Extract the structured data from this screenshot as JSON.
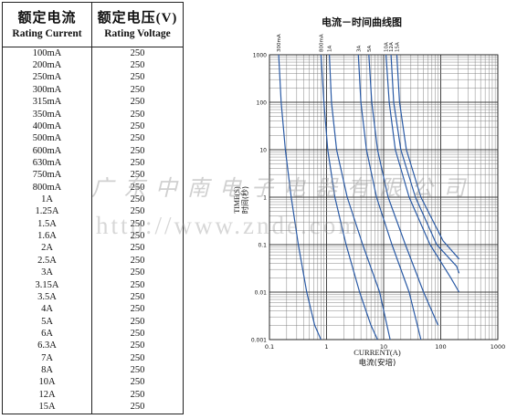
{
  "table": {
    "header_current_cn": "额定电流",
    "header_current_en": "Rating Current",
    "header_voltage_cn": "额定电压(V)",
    "header_voltage_en": "Rating Voltage",
    "rows": [
      [
        "100mA",
        "250"
      ],
      [
        "200mA",
        "250"
      ],
      [
        "250mA",
        "250"
      ],
      [
        "300mA",
        "250"
      ],
      [
        "315mA",
        "250"
      ],
      [
        "350mA",
        "250"
      ],
      [
        "400mA",
        "250"
      ],
      [
        "500mA",
        "250"
      ],
      [
        "600mA",
        "250"
      ],
      [
        "630mA",
        "250"
      ],
      [
        "750mA",
        "250"
      ],
      [
        "800mA",
        "250"
      ],
      [
        "1A",
        "250"
      ],
      [
        "1.25A",
        "250"
      ],
      [
        "1.5A",
        "250"
      ],
      [
        "1.6A",
        "250"
      ],
      [
        "2A",
        "250"
      ],
      [
        "2.5A",
        "250"
      ],
      [
        "3A",
        "250"
      ],
      [
        "3.15A",
        "250"
      ],
      [
        "3.5A",
        "250"
      ],
      [
        "4A",
        "250"
      ],
      [
        "5A",
        "250"
      ],
      [
        "6A",
        "250"
      ],
      [
        "6.3A",
        "250"
      ],
      [
        "7A",
        "250"
      ],
      [
        "8A",
        "250"
      ],
      [
        "10A",
        "250"
      ],
      [
        "12A",
        "250"
      ],
      [
        "15A",
        "250"
      ]
    ]
  },
  "watermark": {
    "company": "广东中南电子电器有限公司",
    "url": "http://www.znde.com"
  },
  "chart_data": {
    "type": "line",
    "title": "电流－时间曲线图",
    "xlabel": "CURRENT(A)",
    "xlabel_cn": "电流(安培)",
    "ylabel": "TIME(S)",
    "ylabel_cn": "时间(秒)",
    "x_scale": "log",
    "y_scale": "log",
    "xlim": [
      0.1,
      1000
    ],
    "ylim": [
      0.001,
      1000
    ],
    "x_ticks": [
      "0.1",
      "1",
      "10",
      "100",
      "1000"
    ],
    "y_ticks": [
      "1000",
      "100",
      "10",
      "1",
      "0.1",
      "0.01",
      "0.001"
    ],
    "grid": true,
    "curve_labels": [
      "300mA",
      "800mA",
      "1A",
      "3A",
      "5A",
      "10A",
      "12A",
      "15A"
    ],
    "series": [
      {
        "name": "300mA",
        "x": [
          0.145,
          0.16,
          0.19,
          0.24,
          0.32,
          0.45,
          0.62,
          0.8
        ],
        "y": [
          1000,
          100,
          10,
          1,
          0.1,
          0.01,
          0.002,
          0.001
        ]
      },
      {
        "name": "800mA",
        "x": [
          0.8,
          0.9,
          1.05,
          1.4,
          2.2,
          3.8,
          6.0,
          7.8
        ],
        "y": [
          1000,
          100,
          10,
          1,
          0.1,
          0.01,
          0.002,
          0.001
        ]
      },
      {
        "name": "1A",
        "x": [
          1.12,
          1.22,
          1.5,
          2.3,
          4.3,
          8.5,
          13.0
        ],
        "y": [
          1000,
          100,
          10,
          1,
          0.1,
          0.01,
          0.001
        ]
      },
      {
        "name": "3A",
        "x": [
          3.6,
          4.0,
          5.0,
          7.5,
          14.0,
          28.0,
          45.0
        ],
        "y": [
          1000,
          100,
          10,
          1,
          0.1,
          0.01,
          0.001
        ]
      },
      {
        "name": "5A",
        "x": [
          5.5,
          6.2,
          7.8,
          12.0,
          24.0,
          50.0,
          90.0
        ],
        "y": [
          1000,
          100,
          10,
          1,
          0.1,
          0.01,
          0.002
        ]
      },
      {
        "name": "10A",
        "x": [
          11.0,
          12.5,
          16.0,
          28.0,
          65.0,
          150.0,
          210.0
        ],
        "y": [
          1000,
          100,
          10,
          1,
          0.1,
          0.02,
          0.01
        ]
      },
      {
        "name": "12A",
        "x": [
          13.5,
          15.0,
          20.0,
          36.0,
          85.0,
          190.0,
          210.0
        ],
        "y": [
          1000,
          100,
          10,
          1,
          0.1,
          0.035,
          0.025
        ]
      },
      {
        "name": "15A",
        "x": [
          17.0,
          19.0,
          25.0,
          45.0,
          110.0,
          210.0
        ],
        "y": [
          1000,
          100,
          10,
          1,
          0.12,
          0.05
        ]
      }
    ]
  }
}
